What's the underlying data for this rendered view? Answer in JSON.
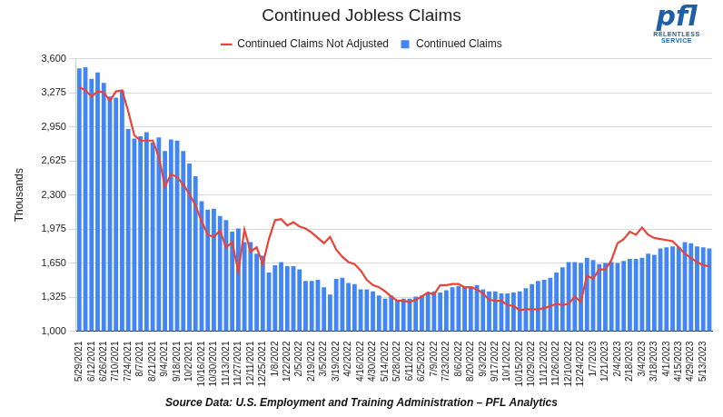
{
  "chart_data": {
    "type": "bar",
    "title": "Continued Jobless Claims",
    "ylabel": "Thousands",
    "annotations": [
      "Source Data: U.S. Employment and Training Administration – PFL Analytics"
    ],
    "logo": {
      "text": "pfl",
      "tagline": "RELENTLESS SERVICE"
    },
    "categories": [
      "5/29/2021",
      null,
      "6/12/2021",
      null,
      "6/26/2021",
      null,
      "7/10/2021",
      null,
      "7/24/2021",
      null,
      "8/7/2021",
      null,
      "8/21/2021",
      null,
      "9/4/2021",
      null,
      "9/18/2021",
      null,
      "10/2/2021",
      null,
      "10/16/2021",
      null,
      "10/30/2021",
      null,
      "11/13/2021",
      null,
      "11/27/2021",
      null,
      "12/11/2021",
      null,
      "12/25/2021",
      null,
      "1/8/2022",
      null,
      "1/22/2022",
      null,
      "2/5/2022",
      null,
      "2/19/2022",
      null,
      "3/5/2022",
      null,
      "3/19/2022",
      null,
      "4/2/2022",
      null,
      "4/16/2022",
      null,
      "4/30/2022",
      null,
      "5/14/2022",
      null,
      "5/28/2022",
      null,
      "6/11/2022",
      null,
      "6/25/2022",
      null,
      "7/9/2022",
      null,
      "7/23/2022",
      null,
      "8/6/2022",
      null,
      "8/20/2022",
      null,
      "9/3/2022",
      null,
      "9/17/2022",
      null,
      "10/1/2022",
      null,
      "10/15/2022",
      null,
      "10/29/2022",
      null,
      "11/12/2022",
      null,
      "11/26/2022",
      null,
      "12/10/2022",
      null,
      "12/24/2022",
      null,
      "1/7/2023",
      null,
      "1/21/2023",
      null,
      "2/4/2023",
      null,
      "2/18/2023",
      null,
      "3/4/2023",
      null,
      "3/18/2023",
      null,
      "4/1/2023",
      null,
      "4/15/2023",
      null,
      "4/29/2023",
      null,
      "5/13/2023",
      null
    ],
    "series": [
      {
        "name": "Continued Claims",
        "type": "bar",
        "color": "#4285f4",
        "values": [
          3510,
          3520,
          3410,
          3470,
          3370,
          3240,
          3230,
          3300,
          2930,
          2840,
          2860,
          2900,
          2800,
          2850,
          2720,
          2830,
          2820,
          2720,
          2600,
          2480,
          2240,
          2160,
          2170,
          2100,
          2060,
          1950,
          1980,
          1850,
          1850,
          1740,
          1720,
          1560,
          1630,
          1660,
          1620,
          1620,
          1590,
          1480,
          1480,
          1490,
          1420,
          1350,
          1500,
          1510,
          1460,
          1450,
          1400,
          1400,
          1380,
          1340,
          1310,
          1340,
          1300,
          1310,
          1310,
          1330,
          1340,
          1370,
          1380,
          1370,
          1390,
          1420,
          1430,
          1430,
          1430,
          1440,
          1400,
          1380,
          1380,
          1360,
          1360,
          1370,
          1380,
          1410,
          1450,
          1480,
          1490,
          1510,
          1560,
          1610,
          1660,
          1660,
          1650,
          1700,
          1680,
          1640,
          1650,
          1660,
          1650,
          1670,
          1690,
          1690,
          1700,
          1740,
          1730,
          1790,
          1800,
          1810,
          1800,
          1850,
          1840,
          1810,
          1800,
          1790
        ]
      },
      {
        "name": "Continued Claims Not Adjusted",
        "type": "line",
        "color": "#ea4335",
        "marker": "none",
        "line_style": "solid",
        "values": [
          3330,
          3300,
          3240,
          3290,
          3280,
          3200,
          3290,
          3300,
          3100,
          2870,
          2820,
          2820,
          2820,
          2670,
          2380,
          2500,
          2470,
          2400,
          2310,
          2200,
          2050,
          1920,
          1900,
          1960,
          1800,
          1850,
          1570,
          1970,
          1760,
          1800,
          1640,
          1880,
          2060,
          2070,
          2010,
          2040,
          2000,
          1980,
          1940,
          1890,
          1840,
          1900,
          1780,
          1710,
          1660,
          1640,
          1580,
          1490,
          1440,
          1420,
          1380,
          1330,
          1290,
          1290,
          1280,
          1300,
          1330,
          1370,
          1350,
          1440,
          1440,
          1450,
          1450,
          1420,
          1420,
          1400,
          1360,
          1300,
          1290,
          1290,
          1250,
          1240,
          1200,
          1210,
          1210,
          1210,
          1220,
          1240,
          1260,
          1250,
          1260,
          1330,
          1280,
          1530,
          1500,
          1590,
          1590,
          1680,
          1840,
          1880,
          1950,
          1920,
          1990,
          1920,
          1890,
          1880,
          1870,
          1860,
          1800,
          1740,
          1700,
          1660,
          1630,
          1620
        ]
      }
    ],
    "ylim": [
      1000,
      3600
    ],
    "yticks": [
      1000,
      1325,
      1650,
      1975,
      2300,
      2625,
      2950,
      3275,
      3600
    ],
    "grid": true,
    "legend": "top"
  }
}
